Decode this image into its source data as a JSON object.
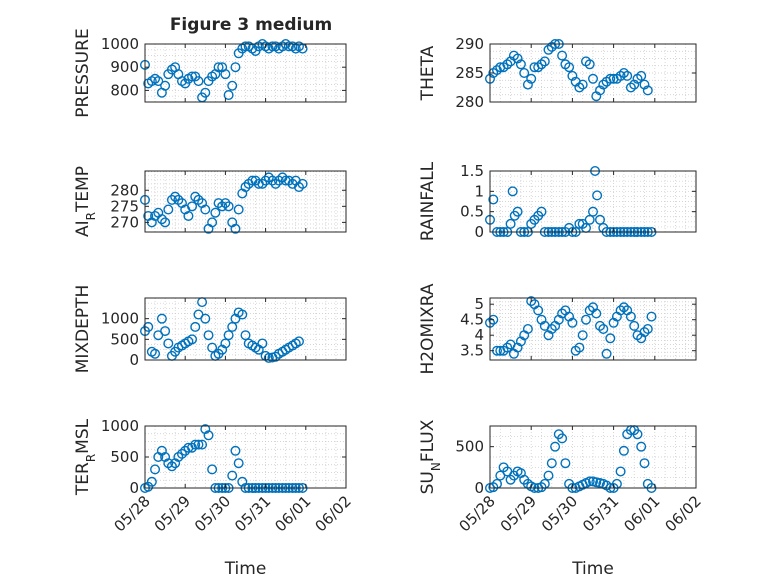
{
  "figure": {
    "title": "Figure 3 medium"
  },
  "colors": {
    "marker": "#0072BD",
    "axis": "#262626",
    "grid": "#c8c8c8"
  },
  "x_axis": {
    "label": "Time",
    "ticks": [
      0,
      1,
      2,
      3,
      4,
      5
    ],
    "tick_labels": [
      "05/28",
      "05/29",
      "05/30",
      "05/31",
      "06/01",
      "06/02"
    ],
    "range": [
      0,
      5
    ]
  },
  "chart_data": [
    {
      "type": "scatter",
      "ylabel": "PRESSURE",
      "ylim": [
        750,
        1000
      ],
      "yticks": [
        800,
        900,
        1000
      ],
      "yticklabels": [
        "800",
        "900",
        "1000"
      ],
      "grid": true,
      "x": [
        0.0,
        0.08,
        0.17,
        0.25,
        0.33,
        0.42,
        0.5,
        0.58,
        0.67,
        0.75,
        0.83,
        0.92,
        1.0,
        1.08,
        1.17,
        1.25,
        1.33,
        1.42,
        1.5,
        1.58,
        1.67,
        1.75,
        1.83,
        1.92,
        2.0,
        2.08,
        2.17,
        2.25,
        2.33,
        2.42,
        2.5,
        2.58,
        2.67,
        2.75,
        2.83,
        2.92,
        3.0,
        3.08,
        3.17,
        3.25,
        3.33,
        3.42,
        3.5,
        3.58,
        3.67,
        3.75,
        3.83,
        3.92
      ],
      "values": [
        910,
        830,
        840,
        850,
        840,
        790,
        820,
        870,
        890,
        900,
        870,
        840,
        830,
        850,
        860,
        860,
        840,
        770,
        790,
        840,
        860,
        870,
        900,
        900,
        870,
        780,
        820,
        900,
        960,
        980,
        990,
        990,
        980,
        970,
        990,
        1000,
        990,
        980,
        990,
        990,
        980,
        990,
        1000,
        990,
        990,
        980,
        990,
        980
      ]
    },
    {
      "type": "scatter",
      "ylabel": "THETA",
      "ylim": [
        280,
        290
      ],
      "yticks": [
        280,
        285,
        290
      ],
      "yticklabels": [
        "280",
        "285",
        "290"
      ],
      "grid": true,
      "x": [
        0.0,
        0.08,
        0.17,
        0.25,
        0.33,
        0.42,
        0.5,
        0.58,
        0.67,
        0.75,
        0.83,
        0.92,
        1.0,
        1.08,
        1.17,
        1.25,
        1.33,
        1.42,
        1.5,
        1.58,
        1.67,
        1.75,
        1.83,
        1.92,
        2.0,
        2.08,
        2.17,
        2.25,
        2.33,
        2.42,
        2.5,
        2.58,
        2.67,
        2.75,
        2.83,
        2.92,
        3.0,
        3.08,
        3.17,
        3.25,
        3.33,
        3.42,
        3.5,
        3.58,
        3.67,
        3.75,
        3.83
      ],
      "values": [
        284,
        285,
        285.5,
        286,
        286,
        286.5,
        287,
        288,
        287.5,
        286.5,
        285,
        283,
        284,
        286,
        286,
        286.5,
        287,
        289,
        289.5,
        290,
        290,
        288,
        286.5,
        286,
        284.5,
        283.5,
        282.5,
        283,
        287,
        286.5,
        284,
        281,
        282,
        283,
        283.5,
        284,
        284,
        284,
        284.5,
        285,
        284.5,
        282.5,
        283,
        284,
        284.5,
        283,
        282
      ]
    },
    {
      "type": "scatter",
      "ylabel": "AIR_TEMP",
      "ylim": [
        267,
        286
      ],
      "yticks": [
        270,
        275,
        280
      ],
      "yticklabels": [
        "270",
        "275",
        "280"
      ],
      "grid": true,
      "x": [
        0.0,
        0.08,
        0.17,
        0.25,
        0.33,
        0.42,
        0.5,
        0.58,
        0.67,
        0.75,
        0.83,
        0.92,
        1.0,
        1.08,
        1.17,
        1.25,
        1.33,
        1.42,
        1.5,
        1.58,
        1.67,
        1.75,
        1.83,
        1.92,
        2.0,
        2.08,
        2.17,
        2.25,
        2.33,
        2.42,
        2.5,
        2.58,
        2.67,
        2.75,
        2.83,
        2.92,
        3.0,
        3.08,
        3.17,
        3.25,
        3.33,
        3.42,
        3.5,
        3.58,
        3.67,
        3.75,
        3.83,
        3.92
      ],
      "values": [
        277,
        272,
        270,
        272,
        273,
        271,
        270,
        274,
        277,
        278,
        277,
        276,
        274,
        272,
        275,
        278,
        277,
        276,
        274,
        268,
        270,
        273,
        276,
        275,
        276,
        275,
        270,
        268,
        274,
        279,
        281,
        282,
        283,
        283,
        282,
        282,
        283,
        284,
        283,
        282,
        283,
        284,
        283,
        283,
        282,
        283,
        281,
        282
      ]
    },
    {
      "type": "scatter",
      "ylabel": "RAINFALL",
      "ylim": [
        0,
        1.5
      ],
      "yticks": [
        0,
        0.5,
        1,
        1.5
      ],
      "yticklabels": [
        "0",
        "0.5",
        "1",
        "1.5"
      ],
      "grid": true,
      "x": [
        0.0,
        0.08,
        0.17,
        0.25,
        0.33,
        0.42,
        0.5,
        0.55,
        0.6,
        0.67,
        0.75,
        0.83,
        0.92,
        1.0,
        1.08,
        1.17,
        1.25,
        1.33,
        1.42,
        1.5,
        1.58,
        1.67,
        1.75,
        1.83,
        1.92,
        2.0,
        2.08,
        2.17,
        2.25,
        2.33,
        2.42,
        2.5,
        2.55,
        2.6,
        2.67,
        2.75,
        2.83,
        2.92,
        3.0,
        3.08,
        3.17,
        3.25,
        3.33,
        3.42,
        3.5,
        3.58,
        3.67,
        3.75,
        3.83,
        3.92
      ],
      "values": [
        0.3,
        0.8,
        0,
        0,
        0,
        0,
        0.2,
        1.0,
        0.4,
        0.5,
        0,
        0,
        0,
        0.2,
        0.3,
        0.4,
        0.5,
        0,
        0,
        0,
        0,
        0,
        0,
        0,
        0.1,
        0,
        0,
        0.2,
        0.2,
        0.1,
        0.3,
        0.5,
        1.5,
        0.9,
        0.3,
        0.1,
        0,
        0,
        0,
        0,
        0,
        0,
        0,
        0,
        0,
        0,
        0,
        0,
        0,
        0
      ]
    },
    {
      "type": "scatter",
      "ylabel": "MIXDEPTH",
      "ylim": [
        0,
        1500
      ],
      "yticks": [
        0,
        500,
        1000
      ],
      "yticklabels": [
        "0",
        "500",
        "1000"
      ],
      "grid": true,
      "x": [
        0.0,
        0.08,
        0.17,
        0.25,
        0.33,
        0.42,
        0.5,
        0.58,
        0.67,
        0.75,
        0.83,
        0.92,
        1.0,
        1.08,
        1.17,
        1.25,
        1.33,
        1.42,
        1.5,
        1.58,
        1.67,
        1.75,
        1.83,
        1.92,
        2.0,
        2.08,
        2.17,
        2.25,
        2.33,
        2.42,
        2.5,
        2.58,
        2.67,
        2.75,
        2.83,
        2.92,
        3.0,
        3.08,
        3.17,
        3.25,
        3.33,
        3.42,
        3.5,
        3.58,
        3.67,
        3.75,
        3.83
      ],
      "values": [
        700,
        800,
        200,
        150,
        600,
        1000,
        700,
        400,
        100,
        200,
        300,
        350,
        400,
        450,
        500,
        800,
        1100,
        1400,
        1000,
        600,
        300,
        100,
        150,
        250,
        400,
        600,
        800,
        1000,
        1150,
        1100,
        600,
        400,
        350,
        300,
        250,
        400,
        100,
        50,
        60,
        80,
        150,
        200,
        250,
        300,
        350,
        400,
        450
      ]
    },
    {
      "type": "scatter",
      "ylabel": "H2OMIXRA",
      "ylim": [
        3.2,
        5.2
      ],
      "yticks": [
        3.5,
        4,
        4.5,
        5
      ],
      "yticklabels": [
        "3.5",
        "4",
        "4.5",
        "5"
      ],
      "grid": true,
      "x": [
        0.0,
        0.08,
        0.17,
        0.25,
        0.33,
        0.42,
        0.5,
        0.58,
        0.67,
        0.75,
        0.83,
        0.92,
        1.0,
        1.08,
        1.17,
        1.25,
        1.33,
        1.42,
        1.5,
        1.58,
        1.67,
        1.75,
        1.83,
        1.92,
        2.0,
        2.08,
        2.17,
        2.25,
        2.33,
        2.42,
        2.5,
        2.58,
        2.67,
        2.75,
        2.83,
        2.92,
        3.0,
        3.08,
        3.17,
        3.25,
        3.33,
        3.42,
        3.5,
        3.58,
        3.67,
        3.75,
        3.83,
        3.92
      ],
      "values": [
        4.4,
        4.5,
        3.5,
        3.5,
        3.5,
        3.6,
        3.7,
        3.4,
        3.6,
        3.8,
        4.0,
        4.2,
        5.1,
        5.0,
        4.8,
        4.5,
        4.3,
        4.0,
        4.2,
        4.3,
        4.5,
        4.7,
        4.8,
        4.6,
        4.4,
        3.5,
        3.6,
        4.0,
        4.5,
        4.8,
        4.9,
        4.7,
        4.3,
        4.2,
        3.4,
        3.9,
        4.4,
        4.6,
        4.8,
        4.9,
        4.8,
        4.6,
        4.3,
        4.0,
        3.9,
        4.1,
        4.2,
        4.6
      ]
    },
    {
      "type": "scatter",
      "ylabel": "TERR_MSL",
      "ylim": [
        0,
        1000
      ],
      "yticks": [
        0,
        500,
        1000
      ],
      "yticklabels": [
        "0",
        "500",
        "1000"
      ],
      "grid": true,
      "x": [
        0.0,
        0.08,
        0.17,
        0.25,
        0.33,
        0.42,
        0.5,
        0.58,
        0.67,
        0.75,
        0.83,
        0.92,
        1.0,
        1.08,
        1.17,
        1.25,
        1.33,
        1.42,
        1.5,
        1.58,
        1.67,
        1.75,
        1.83,
        1.92,
        2.0,
        2.08,
        2.17,
        2.25,
        2.33,
        2.42,
        2.5,
        2.58,
        2.67,
        2.75,
        2.83,
        2.92,
        3.0,
        3.08,
        3.17,
        3.25,
        3.33,
        3.42,
        3.5,
        3.58,
        3.67,
        3.75,
        3.83,
        3.92
      ],
      "values": [
        0,
        20,
        100,
        300,
        500,
        600,
        500,
        400,
        350,
        400,
        500,
        550,
        600,
        650,
        650,
        700,
        700,
        700,
        950,
        850,
        300,
        0,
        0,
        0,
        0,
        0,
        200,
        600,
        400,
        100,
        0,
        0,
        0,
        0,
        0,
        0,
        0,
        0,
        0,
        0,
        0,
        0,
        0,
        0,
        0,
        0,
        0,
        0
      ]
    },
    {
      "type": "scatter",
      "ylabel": "SUN_FLUX",
      "ylim": [
        0,
        750
      ],
      "yticks": [
        0,
        500
      ],
      "yticklabels": [
        "0",
        "500"
      ],
      "grid": true,
      "x": [
        0.0,
        0.08,
        0.17,
        0.25,
        0.33,
        0.42,
        0.5,
        0.58,
        0.67,
        0.75,
        0.83,
        0.92,
        1.0,
        1.08,
        1.17,
        1.25,
        1.33,
        1.42,
        1.5,
        1.58,
        1.67,
        1.75,
        1.83,
        1.92,
        2.0,
        2.08,
        2.17,
        2.25,
        2.33,
        2.42,
        2.5,
        2.58,
        2.67,
        2.75,
        2.83,
        2.92,
        3.0,
        3.08,
        3.17,
        3.25,
        3.33,
        3.42,
        3.5,
        3.58,
        3.67,
        3.75,
        3.83,
        3.92
      ],
      "values": [
        0,
        10,
        50,
        150,
        250,
        200,
        100,
        150,
        200,
        180,
        100,
        50,
        20,
        0,
        0,
        10,
        50,
        150,
        300,
        500,
        650,
        600,
        300,
        50,
        0,
        0,
        20,
        40,
        60,
        80,
        80,
        70,
        60,
        50,
        30,
        0,
        0,
        50,
        200,
        450,
        650,
        700,
        700,
        650,
        500,
        300,
        50,
        0
      ]
    }
  ]
}
